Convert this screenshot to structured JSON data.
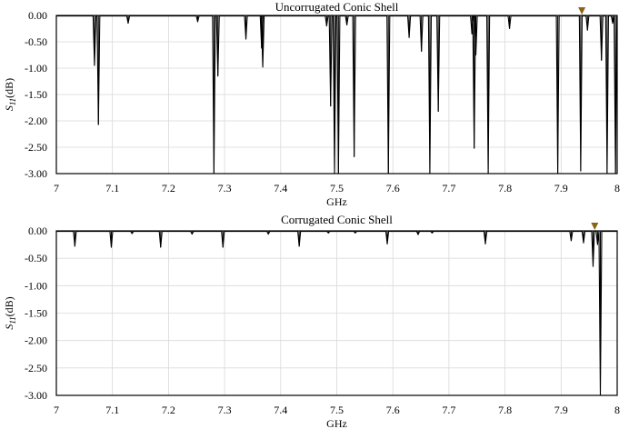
{
  "chart_data": [
    {
      "type": "line",
      "title": "Uncorrugated Conic Shell",
      "xlabel": "GHz",
      "ylabel": {
        "main": "S",
        "sub": "11",
        "unit": "(dB)"
      },
      "xlim": [
        7,
        8
      ],
      "ylim": [
        -3,
        0
      ],
      "xticks": [
        "7",
        "7.1",
        "7.2",
        "7.3",
        "7.4",
        "7.5",
        "7.6",
        "7.7",
        "7.8",
        "7.9",
        "8"
      ],
      "yticks": [
        "0.00",
        "-0.50",
        "-1.00",
        "-1.50",
        "-2.00",
        "-2.50",
        "-3.00"
      ],
      "grid": true,
      "marker": {
        "x": 7.937,
        "y": 0,
        "color": "#8a6414"
      },
      "series": [
        {
          "baseline": -0.01,
          "resonances": [
            {
              "x": 7.068,
              "y": -0.95
            },
            {
              "x": 7.075,
              "y": -2.07
            },
            {
              "x": 7.128,
              "y": -0.15
            },
            {
              "x": 7.252,
              "y": -0.12
            },
            {
              "x": 7.281,
              "y": -3.0
            },
            {
              "x": 7.288,
              "y": -1.15
            },
            {
              "x": 7.338,
              "y": -0.45
            },
            {
              "x": 7.366,
              "y": -0.62
            },
            {
              "x": 7.368,
              "y": -0.98
            },
            {
              "x": 7.482,
              "y": -0.2
            },
            {
              "x": 7.489,
              "y": -1.72
            },
            {
              "x": 7.496,
              "y": -3.0
            },
            {
              "x": 7.503,
              "y": -3.0
            },
            {
              "x": 7.518,
              "y": -0.18
            },
            {
              "x": 7.531,
              "y": -2.68
            },
            {
              "x": 7.592,
              "y": -3.0
            },
            {
              "x": 7.629,
              "y": -0.42
            },
            {
              "x": 7.651,
              "y": -0.68
            },
            {
              "x": 7.666,
              "y": -3.0
            },
            {
              "x": 7.681,
              "y": -1.82
            },
            {
              "x": 7.741,
              "y": -0.35
            },
            {
              "x": 7.745,
              "y": -2.52
            },
            {
              "x": 7.748,
              "y": -0.75
            },
            {
              "x": 7.77,
              "y": -3.0
            },
            {
              "x": 7.808,
              "y": -0.25
            },
            {
              "x": 7.894,
              "y": -3.0
            },
            {
              "x": 7.935,
              "y": -2.95
            },
            {
              "x": 7.947,
              "y": -0.28
            },
            {
              "x": 7.972,
              "y": -0.85
            },
            {
              "x": 7.982,
              "y": -3.0
            },
            {
              "x": 7.992,
              "y": -0.15
            },
            {
              "x": 7.997,
              "y": -3.0
            }
          ]
        }
      ]
    },
    {
      "type": "line",
      "title": "Corrugated Conic Shell",
      "xlabel": "GHz",
      "ylabel": {
        "main": "S",
        "sub": "11",
        "unit": "(dB)"
      },
      "xlim": [
        7,
        8
      ],
      "ylim": [
        -3,
        0
      ],
      "xticks": [
        "7",
        "7.1",
        "7.2",
        "7.3",
        "7.4",
        "7.5",
        "7.6",
        "7.7",
        "7.8",
        "7.9",
        "8"
      ],
      "yticks": [
        "0.00",
        "-0.50",
        "-1.00",
        "-1.50",
        "-2.00",
        "-2.50",
        "-3.00"
      ],
      "grid": true,
      "marker": {
        "x": 7.96,
        "y": 0,
        "color": "#8a6414"
      },
      "series": [
        {
          "baseline": -0.01,
          "resonances": [
            {
              "x": 7.033,
              "y": -0.28
            },
            {
              "x": 7.098,
              "y": -0.3
            },
            {
              "x": 7.135,
              "y": -0.05
            },
            {
              "x": 7.186,
              "y": -0.3
            },
            {
              "x": 7.242,
              "y": -0.06
            },
            {
              "x": 7.297,
              "y": -0.3
            },
            {
              "x": 7.378,
              "y": -0.06
            },
            {
              "x": 7.433,
              "y": -0.28
            },
            {
              "x": 7.485,
              "y": -0.04
            },
            {
              "x": 7.533,
              "y": -0.04
            },
            {
              "x": 7.59,
              "y": -0.24
            },
            {
              "x": 7.645,
              "y": -0.07
            },
            {
              "x": 7.67,
              "y": -0.04
            },
            {
              "x": 7.765,
              "y": -0.24
            },
            {
              "x": 7.918,
              "y": -0.18
            },
            {
              "x": 7.94,
              "y": -0.22
            },
            {
              "x": 7.957,
              "y": -0.65
            },
            {
              "x": 7.965,
              "y": -0.25
            },
            {
              "x": 7.97,
              "y": -3.0
            }
          ]
        }
      ]
    }
  ]
}
